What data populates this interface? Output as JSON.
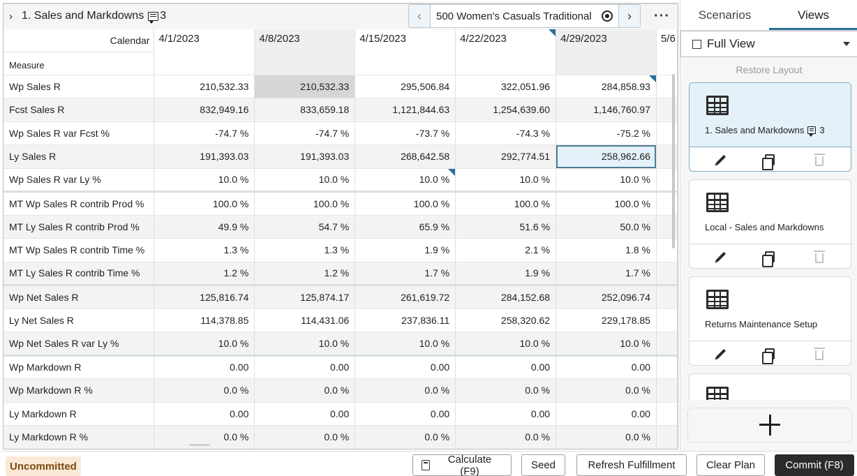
{
  "grid": {
    "title": "1. Sales and Markdowns",
    "note_count": "3",
    "member_nav": {
      "label": "500 Women's Casuals Traditional",
      "prev": "‹",
      "next": "›"
    },
    "more": "···",
    "calendar_label": "Calendar",
    "measure_label": "Measure",
    "dates": [
      "4/1/2023",
      "4/8/2023",
      "4/15/2023",
      "4/22/2023",
      "4/29/2023",
      "5/6"
    ],
    "rows": [
      {
        "label": "Wp Sales R",
        "values": [
          "210,532.33",
          "210,532.33",
          "295,506.84",
          "322,051.96",
          "284,858.93"
        ]
      },
      {
        "label": "Fcst Sales R",
        "values": [
          "832,949.16",
          "833,659.18",
          "1,121,844.63",
          "1,254,639.60",
          "1,146,760.97"
        ]
      },
      {
        "label": "Wp Sales R var Fcst %",
        "values": [
          "-74.7 %",
          "-74.7 %",
          "-73.7 %",
          "-74.3 %",
          "-75.2 %"
        ]
      },
      {
        "label": "Ly Sales R",
        "values": [
          "191,393.03",
          "191,393.03",
          "268,642.58",
          "292,774.51",
          "258,962.66"
        ]
      },
      {
        "label": "Wp Sales R var Ly %",
        "values": [
          "10.0 %",
          "10.0 %",
          "10.0 %",
          "10.0 %",
          "10.0 %"
        ]
      },
      {
        "label": "MT Wp Sales R contrib Prod %",
        "values": [
          "100.0 %",
          "100.0 %",
          "100.0 %",
          "100.0 %",
          "100.0 %"
        ]
      },
      {
        "label": "MT Ly Sales R contrib Prod %",
        "values": [
          "49.9 %",
          "54.7 %",
          "65.9 %",
          "51.6 %",
          "50.0 %"
        ]
      },
      {
        "label": "MT Wp Sales R contrib Time %",
        "values": [
          "1.3 %",
          "1.3 %",
          "1.9 %",
          "2.1 %",
          "1.8 %"
        ]
      },
      {
        "label": "MT Ly Sales R contrib Time %",
        "values": [
          "1.2 %",
          "1.2 %",
          "1.7 %",
          "1.9 %",
          "1.7 %"
        ]
      },
      {
        "label": "Wp Net Sales R",
        "values": [
          "125,816.74",
          "125,874.17",
          "261,619.72",
          "284,152.68",
          "252,096.74"
        ]
      },
      {
        "label": "Ly Net Sales R",
        "values": [
          "114,378.85",
          "114,431.06",
          "237,836.11",
          "258,320.62",
          "229,178.85"
        ]
      },
      {
        "label": "Wp Net Sales R var Ly %",
        "values": [
          "10.0 %",
          "10.0 %",
          "10.0 %",
          "10.0 %",
          "10.0 %"
        ]
      },
      {
        "label": "Wp Markdown R",
        "values": [
          "0.00",
          "0.00",
          "0.00",
          "0.00",
          "0.00"
        ]
      },
      {
        "label": "Wp Markdown R %",
        "values": [
          "0.0 %",
          "0.0 %",
          "0.0 %",
          "0.0 %",
          "0.0 %"
        ]
      },
      {
        "label": "Ly Markdown R",
        "values": [
          "0.00",
          "0.00",
          "0.00",
          "0.00",
          "0.00"
        ]
      },
      {
        "label": "Ly Markdown R %",
        "values": [
          "0.0 %",
          "0.0 %",
          "0.0 %",
          "0.0 %",
          "0.0 %"
        ]
      }
    ]
  },
  "side": {
    "tabs": [
      "Scenarios",
      "Views"
    ],
    "view_select": "Full View",
    "restore_layout": "Restore Layout",
    "views": [
      {
        "name": "1. Sales and Markdowns",
        "note_count": "3"
      },
      {
        "name": "Local - Sales and Markdowns"
      },
      {
        "name": "Returns Maintenance Setup"
      }
    ]
  },
  "bottom": {
    "status": "Uncommitted",
    "calculate": "Calculate (F9)",
    "seed": "Seed",
    "refresh": "Refresh Fulfillment",
    "clear": "Clear Plan",
    "commit": "Commit (F8)"
  },
  "colors": {
    "accent": "#2a6f9b",
    "selected_bg": "#e4f1f8",
    "uncommitted_bg": "#f9e9d6"
  }
}
